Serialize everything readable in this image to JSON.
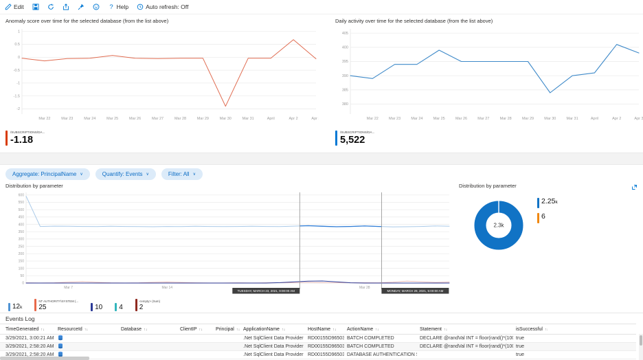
{
  "toolbar": {
    "items": [
      {
        "name": "edit",
        "icon": "pencil",
        "label": "Edit"
      },
      {
        "name": "save",
        "icon": "save",
        "label": ""
      },
      {
        "name": "refresh",
        "icon": "refresh",
        "label": ""
      },
      {
        "name": "share",
        "icon": "share",
        "label": ""
      },
      {
        "name": "pin",
        "icon": "pin",
        "label": ""
      },
      {
        "name": "feedback",
        "icon": "feedback",
        "label": ""
      },
      {
        "name": "help",
        "icon": "question",
        "label": "Help"
      },
      {
        "name": "auto-refresh",
        "icon": "clock",
        "label": "Auto refresh: Off"
      }
    ]
  },
  "filters": [
    {
      "label": "Aggregate: PrincipalName"
    },
    {
      "label": "Quantify: Events"
    },
    {
      "label": "Filter: All"
    }
  ],
  "distribution_line": {
    "title": "Distribution by parameter",
    "legend": [
      {
        "value": "12",
        "suffix": "k",
        "label": "",
        "color": "#4f93d4"
      },
      {
        "value": "25",
        "suffix": "",
        "label": "NT AUTHORITY\\SYSTEM (...",
        "color": "#e8694a"
      },
      {
        "value": "10",
        "suffix": "",
        "label": "",
        "color": "#2b3a97"
      },
      {
        "value": "4",
        "suffix": "",
        "label": "",
        "color": "#33b5bc"
      },
      {
        "value": "2",
        "suffix": "",
        "label": "<empty> (Sum)",
        "color": "#8f2a20"
      }
    ]
  },
  "distribution_donut": {
    "title": "Distribution by parameter",
    "center_value": "2.3k",
    "legend": [
      {
        "value": "2.25",
        "suffix": "k",
        "color": "#1173c5"
      },
      {
        "value": "6",
        "suffix": "",
        "color": "#f0870f"
      }
    ]
  },
  "events_log": {
    "title": "Events Log",
    "columns": [
      {
        "label": "TimeGenerated"
      },
      {
        "label": "ResourceId"
      },
      {
        "label": "Database"
      },
      {
        "label": "ClientIP"
      },
      {
        "label": "Principal"
      },
      {
        "label": "ApplicationName"
      },
      {
        "label": "HostName"
      },
      {
        "label": "ActionName"
      },
      {
        "label": "Statement"
      },
      {
        "label": "isSuccessful"
      }
    ],
    "rows": [
      {
        "time": "3/29/2021, 3:00:21 AM",
        "resource_icon": "sql-database-icon",
        "database": "",
        "client_ip": "",
        "principal": "",
        "app": ".Net SqlClient Data Provider",
        "host": "RD00155D965033",
        "action": "BATCH COMPLETED",
        "statement": "DECLARE @randVal INT = floor(rand()*(1000)); DELETE FRO...",
        "successful": "true"
      },
      {
        "time": "3/29/2021, 2:58:20 AM",
        "resource_icon": "sql-database-icon",
        "database": "",
        "client_ip": "",
        "principal": "",
        "app": ".Net SqlClient Data Provider",
        "host": "RD00155D965033",
        "action": "BATCH COMPLETED",
        "statement": "DECLARE @randVal INT = floor(rand()*(1000)); DELETE FRO...",
        "successful": "true"
      },
      {
        "time": "3/29/2021, 2:58:20 AM",
        "resource_icon": "sql-database-icon",
        "database": "",
        "client_ip": "",
        "principal": "",
        "app": ".Net SqlClient Data Provider",
        "host": "RD00155D965033",
        "action": "DATABASE AUTHENTICATION SUCCEEDED",
        "statement": "",
        "successful": "true"
      }
    ]
  },
  "chart_data": [
    {
      "id": "anomaly",
      "type": "line",
      "title": "Anomaly score over time for the selected database (from the list above)",
      "x": [
        "Mar 21",
        "Mar 22",
        "Mar 23",
        "Mar 24",
        "Mar 25",
        "Mar 26",
        "Mar 27",
        "Mar 28",
        "Mar 29",
        "Mar 30",
        "Mar 31",
        "April",
        "Apr 2",
        "Apr 3"
      ],
      "xticks": [
        [
          1,
          "Mar 22"
        ],
        [
          2,
          "Mar 23"
        ],
        [
          3,
          "Mar 24"
        ],
        [
          4,
          "Mar 25"
        ],
        [
          5,
          "Mar 26"
        ],
        [
          6,
          "Mar 27"
        ],
        [
          7,
          "Mar 28"
        ],
        [
          8,
          "Mar 29"
        ],
        [
          9,
          "Mar 30"
        ],
        [
          10,
          "Mar 31"
        ],
        [
          11,
          "April"
        ],
        [
          12,
          "Apr 2"
        ],
        [
          13,
          "Apr 3"
        ]
      ],
      "series": [
        {
          "name": "/SUBSCRIPTIONS/DA...",
          "color": "#e06c51",
          "width": 1,
          "values": [
            -0.04,
            -0.14,
            -0.05,
            -0.04,
            0.07,
            -0.04,
            -0.05,
            -0.04,
            -0.04,
            -1.9,
            -0.04,
            -0.04,
            0.68,
            -0.06
          ]
        }
      ],
      "ylim": [
        -2.2,
        1.1
      ],
      "yticks": [
        1,
        0.5,
        0,
        -0.5,
        -1,
        -1.5,
        -2
      ],
      "legend_position": "bottom",
      "grid": "horizontal",
      "summary_label": "/SUBSCRIPTIONS/DA...",
      "summary_value": "-1.18",
      "legend_color": "#d83b01"
    },
    {
      "id": "activity",
      "type": "line",
      "title": "Daily activity over time for the selected database (from the list above)",
      "x": [
        "Mar 21",
        "Mar 22",
        "Mar 23",
        "Mar 24",
        "Mar 25",
        "Mar 26",
        "Mar 27",
        "Mar 28",
        "Mar 29",
        "Mar 30",
        "Mar 31",
        "April",
        "Apr 2",
        "Apr 3"
      ],
      "xticks": [
        [
          1,
          "Mar 22"
        ],
        [
          2,
          "Mar 23"
        ],
        [
          3,
          "Mar 24"
        ],
        [
          4,
          "Mar 25"
        ],
        [
          5,
          "Mar 26"
        ],
        [
          6,
          "Mar 27"
        ],
        [
          7,
          "Mar 28"
        ],
        [
          8,
          "Mar 29"
        ],
        [
          9,
          "Mar 30"
        ],
        [
          10,
          "Mar 31"
        ],
        [
          11,
          "April"
        ],
        [
          12,
          "Apr 2"
        ],
        [
          13,
          "Apr 3"
        ]
      ],
      "series": [
        {
          "name": "/SUBSCRIPTIONS/DA...",
          "color": "#3f8ac9",
          "width": 1.1,
          "values": [
            390,
            389,
            394,
            394,
            399,
            395,
            395,
            395,
            395,
            384,
            390,
            391,
            401,
            398
          ]
        }
      ],
      "ylim": [
        376.5,
        406.5
      ],
      "yticks": [
        405,
        400,
        395,
        390,
        385,
        380
      ],
      "legend_position": "bottom",
      "grid": "horizontal",
      "summary_label": "/SUBSCRIPTIONS/DA...",
      "summary_value": "5,522",
      "legend_color": "#0078d4"
    },
    {
      "id": "dist",
      "type": "line",
      "title": "Distribution by parameter",
      "x_range": "Mar 4 - Apr 3, 2021 (daily)",
      "xticks": [
        [
          3,
          "Mar 7"
        ],
        [
          10,
          "Mar 14"
        ],
        [
          24,
          "Mar 28"
        ]
      ],
      "series": [
        {
          "name": "12k",
          "color": "#a9c9e8",
          "width": 1,
          "values": [
            592,
            386,
            388,
            387,
            386,
            385,
            387,
            386,
            385,
            384,
            386,
            385,
            387,
            386,
            385,
            386,
            387,
            386,
            385,
            388,
            391,
            387,
            384,
            386,
            389,
            386,
            383,
            384,
            386,
            389,
            387
          ]
        },
        {
          "name": "NT AUTHORITY\\SYSTEM (...",
          "color": "#e7b6b1",
          "width": 0.9,
          "values": [
            2,
            1,
            2,
            6,
            10,
            5,
            2,
            1,
            2,
            5,
            7,
            4,
            2,
            1,
            1,
            2,
            1,
            2,
            2,
            3,
            5,
            3,
            2,
            2,
            3,
            2,
            6,
            13,
            9,
            4,
            7
          ]
        },
        {
          "name": "10",
          "color": "#2b3a97",
          "width": 1,
          "values": [
            0,
            0,
            0,
            0,
            0,
            0,
            0,
            0,
            0,
            0,
            0,
            0,
            0,
            0,
            0,
            0,
            0,
            0,
            3,
            8,
            13,
            14,
            8,
            2,
            0,
            0,
            0,
            0,
            0,
            0,
            0
          ]
        }
      ],
      "ylim": [
        0,
        618
      ],
      "yticks": [
        600,
        550,
        500,
        450,
        400,
        350,
        300,
        250,
        200,
        150,
        100,
        50,
        0
      ],
      "grid": "horizontal",
      "brush": {
        "x1": 19.4,
        "x2": 25.2,
        "overlay_series": 0,
        "overlay_color": "#2e7cd6",
        "start_label": "TUESDAY, MARCH 23, 2021, 9:00:00 AM",
        "end_label": "MONDAY, MARCH 29, 2021, 5:00:00 AM"
      }
    },
    {
      "id": "donut",
      "type": "pie",
      "title": "Distribution by parameter",
      "center": "2.3k",
      "values": [
        {
          "label": "2.25k",
          "value": 2250,
          "color": "#1173c5"
        },
        {
          "label": "6",
          "value": 6,
          "color": "#f0870f"
        }
      ],
      "legend_position": "right"
    }
  ]
}
